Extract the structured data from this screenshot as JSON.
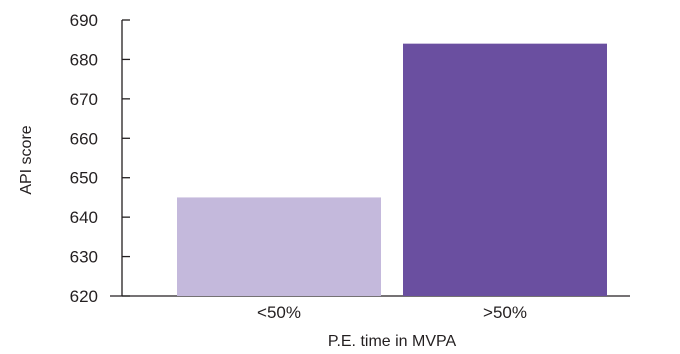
{
  "chart_data": {
    "type": "bar",
    "title": "",
    "xlabel": "P.E. time in MVPA",
    "ylabel": "API score",
    "categories": [
      "<50%",
      ">50%"
    ],
    "values": [
      645,
      684
    ],
    "ylim": [
      620,
      690
    ],
    "yticks": [
      "620",
      "630",
      "640",
      "650",
      "660",
      "670",
      "680",
      "690"
    ],
    "bar_colors": [
      "#c4b9dc",
      "#6a4fa0"
    ],
    "axis_color": "#231f20",
    "grid": false,
    "legend": "none"
  }
}
